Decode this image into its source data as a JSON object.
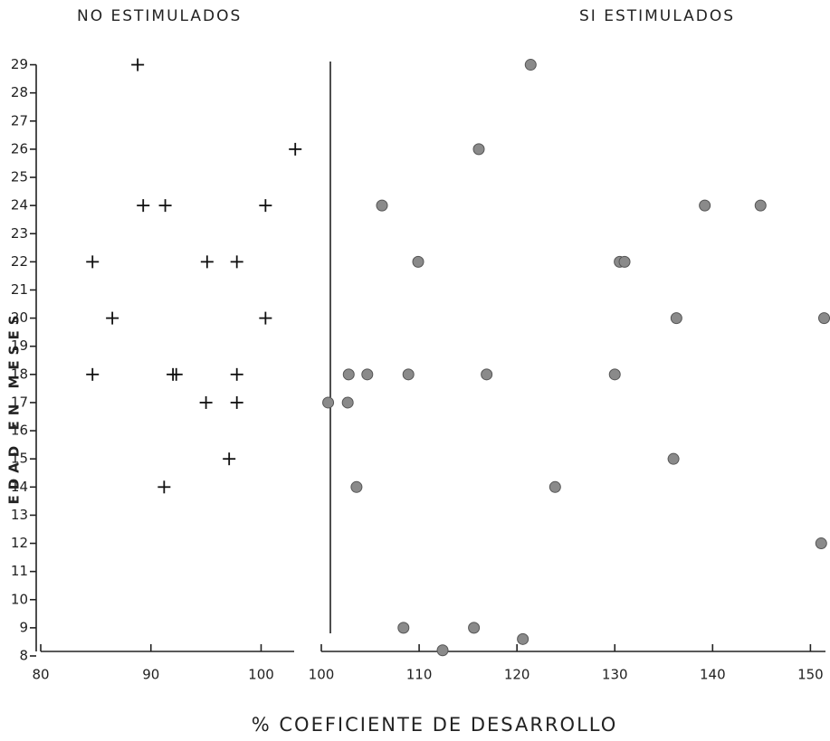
{
  "chart_data": [
    {
      "type": "scatter",
      "title": "NO ESTIMULADOS",
      "ylabel": "EDAD EN MESES",
      "xlabel": "% COEFICIENTE DE DESARROLLO",
      "marker": "plus",
      "color": "#111",
      "xlim": [
        80,
        103
      ],
      "xticks": [
        80,
        90,
        100
      ],
      "ylim": [
        8,
        29.5
      ],
      "yticks": [
        8,
        9,
        10,
        11,
        12,
        13,
        14,
        15,
        16,
        17,
        18,
        19,
        20,
        21,
        22,
        23,
        24,
        25,
        26,
        27,
        28,
        29
      ],
      "x": [
        88.8,
        103.1,
        89.3,
        91.3,
        100.4,
        84.7,
        95.1,
        97.8,
        86.5,
        100.4,
        84.7,
        92.0,
        92.3,
        97.8,
        95.0,
        97.8,
        97.1,
        91.2
      ],
      "values": [
        29,
        26,
        24,
        24,
        24,
        22,
        22,
        22,
        20,
        20,
        18,
        18,
        18,
        18,
        17,
        17,
        15,
        14
      ]
    },
    {
      "type": "scatter",
      "title": "SI ESTIMULADOS",
      "marker": "circle",
      "color": "#8a8a8a",
      "xlim": [
        100,
        152
      ],
      "xticks": [
        100,
        110,
        120,
        130,
        140,
        150
      ],
      "ylim": [
        8,
        29.5
      ],
      "x": [
        121.4,
        116.1,
        106.2,
        139.2,
        144.9,
        109.9,
        130.5,
        131.0,
        136.3,
        151.4,
        102.8,
        104.7,
        108.9,
        116.9,
        130.0,
        100.7,
        102.7,
        136.0,
        103.6,
        123.9,
        151.1,
        108.4,
        115.6,
        120.6,
        112.4
      ],
      "values": [
        29,
        26,
        24,
        24,
        24,
        22,
        22,
        22,
        20,
        20,
        18,
        18,
        18,
        18,
        18,
        17,
        17,
        15,
        14,
        14,
        12,
        9,
        9,
        8.6,
        8.2
      ]
    }
  ]
}
